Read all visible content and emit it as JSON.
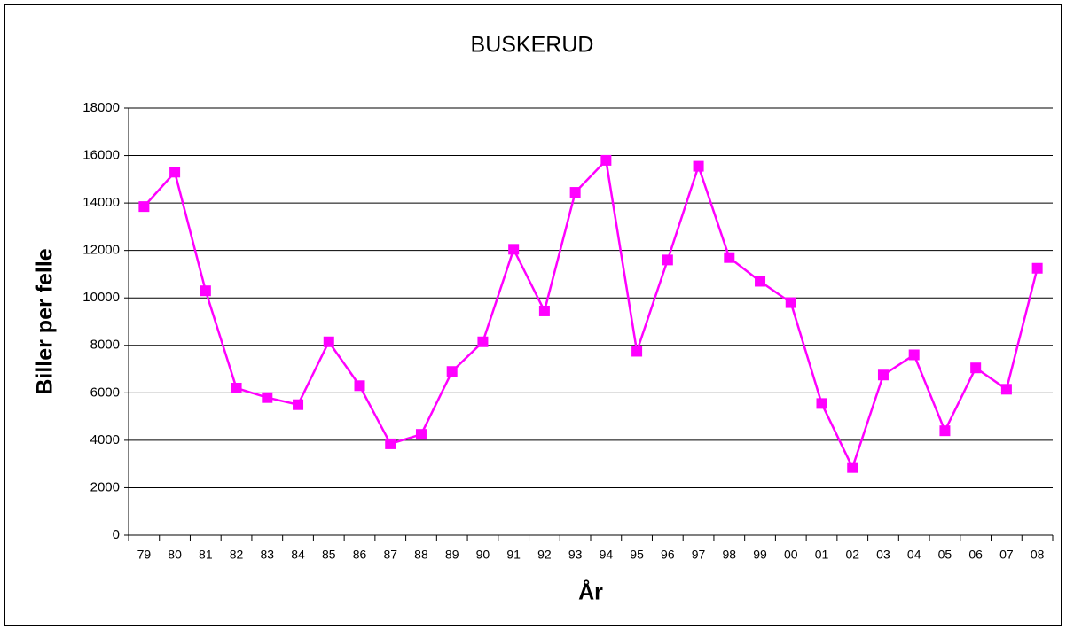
{
  "chart_data": {
    "type": "line",
    "title": "BUSKERUD",
    "x_label": "År",
    "y_label": "Biller per felle",
    "categories": [
      "79",
      "80",
      "81",
      "82",
      "83",
      "84",
      "85",
      "86",
      "87",
      "88",
      "89",
      "90",
      "91",
      "92",
      "93",
      "94",
      "95",
      "96",
      "97",
      "98",
      "99",
      "00",
      "01",
      "02",
      "03",
      "04",
      "05",
      "06",
      "07",
      "08"
    ],
    "series": [
      {
        "name": "Buskerud",
        "color": "#ff00ff",
        "values": [
          13850,
          15300,
          10300,
          6200,
          5800,
          5500,
          8150,
          6300,
          3850,
          4250,
          6900,
          8150,
          12050,
          9450,
          14450,
          15800,
          7750,
          11600,
          15550,
          11700,
          10700,
          9800,
          5550,
          2850,
          6750,
          7600,
          4400,
          7050,
          6150,
          11250
        ]
      }
    ],
    "ylim": [
      0,
      18000
    ],
    "yticks": [
      0,
      2000,
      4000,
      6000,
      8000,
      10000,
      12000,
      14000,
      16000,
      18000
    ],
    "grid": true
  }
}
